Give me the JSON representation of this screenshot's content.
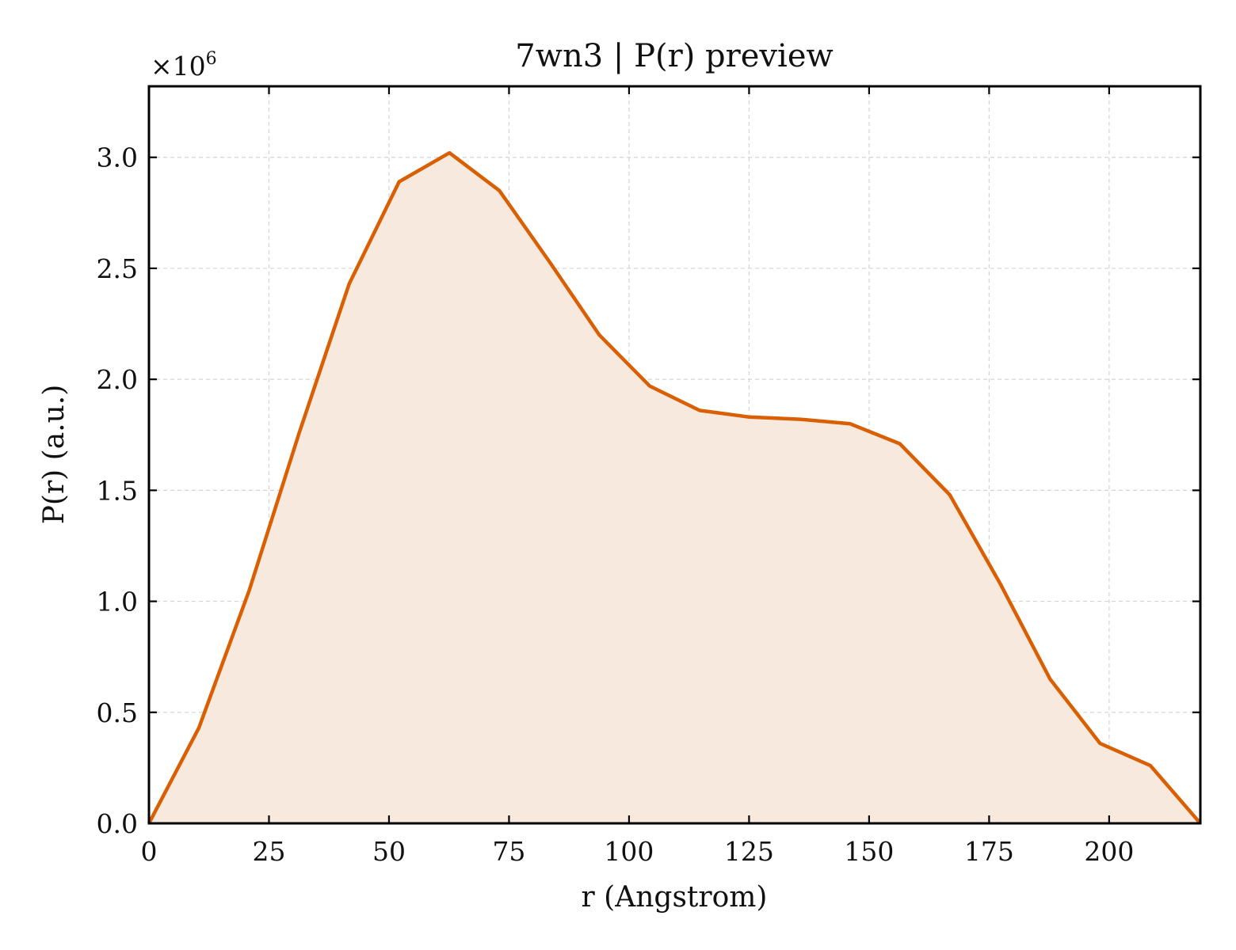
{
  "chart_data": {
    "type": "area",
    "title": "7wn3 | P(r) preview",
    "xlabel": "r (Angstrom)",
    "ylabel": "P(r) (a.u.)",
    "y_multiplier_label": "×10",
    "y_multiplier_exponent": "6",
    "xlim": [
      0,
      219
    ],
    "ylim": [
      0,
      3.32
    ],
    "xticks": [
      0,
      25,
      50,
      75,
      100,
      125,
      150,
      175,
      200
    ],
    "xtick_labels": [
      "0",
      "25",
      "50",
      "75",
      "100",
      "125",
      "150",
      "175",
      "200"
    ],
    "yticks": [
      0,
      0.5,
      1.0,
      1.5,
      2.0,
      2.5,
      3.0
    ],
    "ytick_labels": [
      "0.0",
      "0.5",
      "1.0",
      "1.5",
      "2.0",
      "2.5",
      "3.0"
    ],
    "grid": true,
    "line_color": "#d95f02",
    "fill_color": "#f8e9de",
    "series": [
      {
        "x": [
          0,
          10.4,
          20.9,
          31.3,
          41.7,
          52.1,
          62.6,
          73.0,
          83.4,
          93.8,
          104.3,
          114.7,
          125.1,
          135.6,
          146.0,
          156.4,
          166.8,
          177.3,
          187.7,
          198.1,
          208.6,
          219.0
        ],
        "y": [
          0.0,
          0.43,
          1.05,
          1.76,
          2.43,
          2.89,
          3.02,
          2.85,
          2.53,
          2.2,
          1.97,
          1.86,
          1.83,
          1.82,
          1.8,
          1.71,
          1.48,
          1.08,
          0.65,
          0.36,
          0.26,
          0.0
        ]
      }
    ]
  }
}
